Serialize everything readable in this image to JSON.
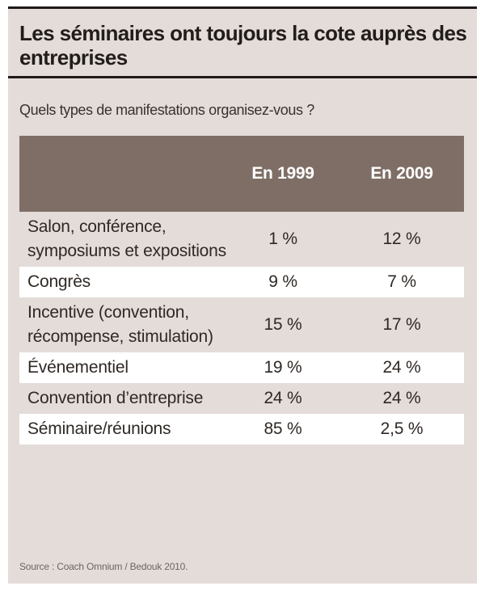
{
  "title": "Les séminaires ont toujours la cote auprès des entreprises",
  "subtitle": "Quels types de manifestations organisez-vous ?",
  "source": "Source : Coach Omnium / Bedouk 2010.",
  "colors": {
    "panel_background": "#e3dcd9",
    "header_background": "#7f6e66",
    "alternate_row": "#ffffff"
  },
  "chart_data": {
    "type": "table",
    "title": "Les séminaires ont toujours la cote auprès des entreprises",
    "subtitle": "Quels types de manifestations organisez-vous ?",
    "columns": [
      "",
      "En 1999",
      "En 2009"
    ],
    "rows": [
      {
        "label": "Salon, conférence, symposiums et expositions",
        "v1999": "1 %",
        "v2009": "12 %"
      },
      {
        "label": "Congrès",
        "v1999": "9 %",
        "v2009": "7 %"
      },
      {
        "label": "Incentive (convention, récompense, stimulation)",
        "v1999": "15 %",
        "v2009": "17 %"
      },
      {
        "label": "Événementiel",
        "v1999": "19 %",
        "v2009": "24 %"
      },
      {
        "label": "Convention d’entreprise",
        "v1999": "24 %",
        "v2009": "24 %"
      },
      {
        "label": "Séminaire/réunions",
        "v1999": "85 %",
        "v2009": "2,5 %"
      }
    ]
  }
}
